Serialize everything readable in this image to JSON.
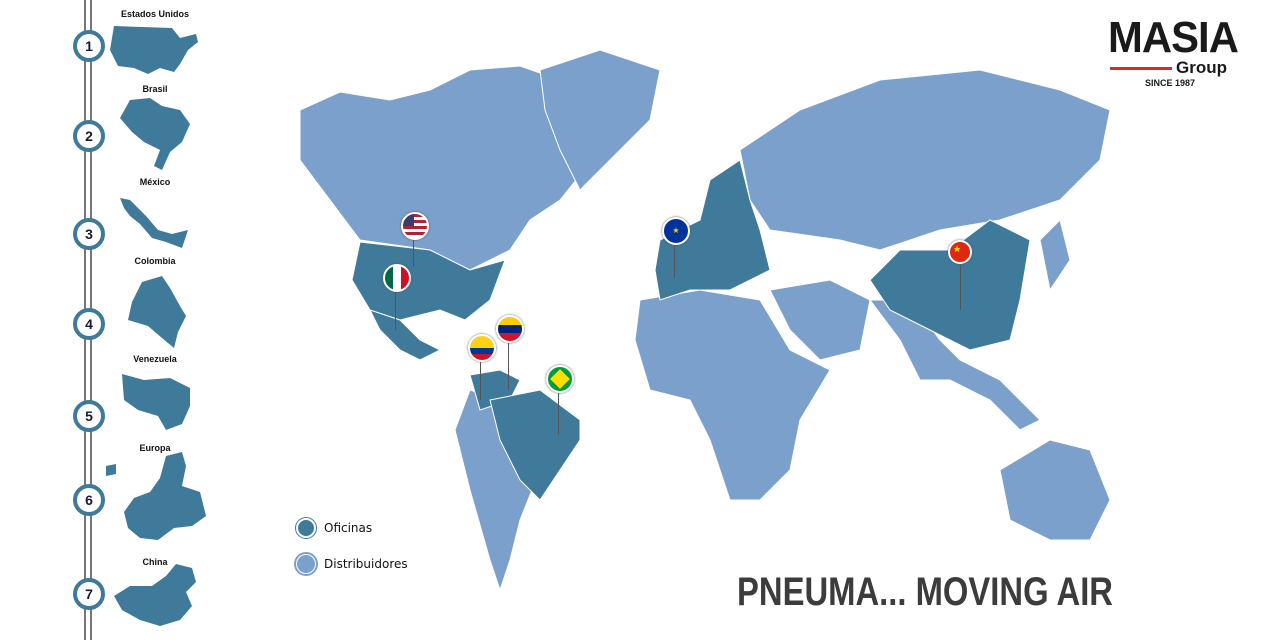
{
  "colors": {
    "office": "#3f7a9a",
    "distributor": "#7ba0cc",
    "rail": "#777777",
    "accent_red": "#d32f2f"
  },
  "sidebar": {
    "items": [
      {
        "number": "1",
        "label": "Estados Unidos"
      },
      {
        "number": "2",
        "label": "Brasil"
      },
      {
        "number": "3",
        "label": "México"
      },
      {
        "number": "4",
        "label": "Colombia"
      },
      {
        "number": "5",
        "label": "Venezuela"
      },
      {
        "number": "6",
        "label": "Europa"
      },
      {
        "number": "7",
        "label": "China"
      }
    ]
  },
  "logo": {
    "name": "MASIA",
    "sub": "Group",
    "since": "SINCE 1987"
  },
  "legend": [
    {
      "label": "Oficinas"
    },
    {
      "label": "Distribuidores"
    }
  ],
  "tagline": "PNEUMA... MOVING AIR",
  "pins": [
    {
      "flag": "usa-flag-icon"
    },
    {
      "flag": "mexico-flag-icon"
    },
    {
      "flag": "venezuela-flag-icon"
    },
    {
      "flag": "colombia-flag-icon"
    },
    {
      "flag": "brazil-flag-icon"
    },
    {
      "flag": "eu-flag-icon"
    },
    {
      "flag": "china-flag-icon"
    }
  ]
}
